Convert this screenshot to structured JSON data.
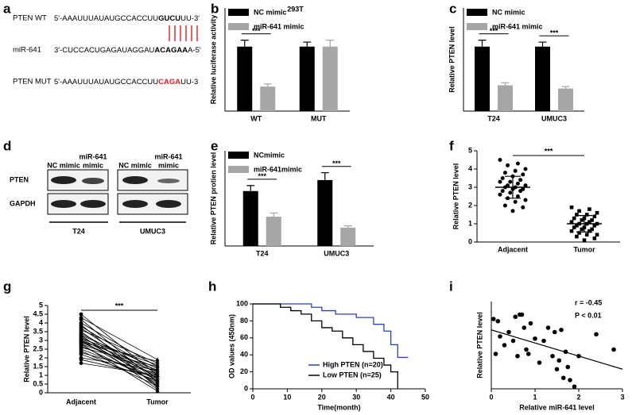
{
  "panel_labels": [
    "a",
    "b",
    "c",
    "d",
    "e",
    "f",
    "g",
    "h",
    "i"
  ],
  "sequences": [
    {
      "name": "PTEN WT",
      "parts": [
        {
          "text": "5'-AAAUUUAUAUGCCACCUU"
        },
        {
          "text": "GUCU",
          "bold": true
        },
        {
          "text": "UU-3'"
        }
      ]
    },
    {
      "name": "miR-641",
      "parts": [
        {
          "text": "3'-CUCCACUGAGAUAGGAU"
        },
        {
          "text": "ACAGAA",
          "bold": true
        },
        {
          "text": "A-5'"
        }
      ]
    },
    {
      "name": "PTEN MUT",
      "parts": [
        {
          "text": "5'-AAAUUUAUAUGCCACCUU"
        },
        {
          "text": "CAGA",
          "bold": true,
          "color": "#e02020"
        },
        {
          "text": "UU-3"
        }
      ]
    }
  ],
  "blot": {
    "lane_labels": [
      [
        "NC mimic"
      ],
      [
        "miR-641",
        "mimic"
      ],
      [
        "NC mimic"
      ],
      [
        "miR-641",
        "mimic"
      ]
    ],
    "rows": [
      "PTEN",
      "GAPDH"
    ],
    "groups": [
      "T24",
      "UMUC3"
    ]
  },
  "chart_data": [
    {
      "type": "bar",
      "title": "293T",
      "ylabel": "Relative luciferase activity",
      "categories": [
        "WT",
        "MUT"
      ],
      "series": [
        {
          "name": "NC mimic",
          "color": "#000000",
          "values": [
            1.0,
            1.0
          ],
          "errors": [
            0.1,
            0.07
          ]
        },
        {
          "name": "miR-641 mimic",
          "color": "#a6a6a6",
          "values": [
            0.38,
            1.0
          ],
          "errors": [
            0.04,
            0.1
          ]
        }
      ],
      "ylim": [
        0,
        1.6
      ],
      "significance": [
        "***",
        null
      ]
    },
    {
      "type": "bar",
      "ylabel": "Relative PTEN level",
      "categories": [
        "T24",
        "UMUC3"
      ],
      "series": [
        {
          "name": "NC mimic",
          "color": "#000000",
          "values": [
            1.0,
            1.0
          ],
          "errors": [
            0.1,
            0.07
          ]
        },
        {
          "name": "miR-641 mimic",
          "color": "#a6a6a6",
          "values": [
            0.4,
            0.35
          ],
          "errors": [
            0.04,
            0.03
          ]
        }
      ],
      "ylim": [
        0,
        1.6
      ],
      "significance": [
        "***",
        "***"
      ]
    },
    {
      "type": "bar",
      "ylabel": "Relative PTEN protien level",
      "categories": [
        "T24",
        "UMUC3"
      ],
      "series": [
        {
          "name": "NCmimic",
          "color": "#000000",
          "values": [
            1.5,
            1.8
          ],
          "errors": [
            0.15,
            0.2
          ]
        },
        {
          "name": "miR-641mimic",
          "color": "#a6a6a6",
          "values": [
            0.8,
            0.5
          ],
          "errors": [
            0.1,
            0.05
          ]
        }
      ],
      "ylim": [
        0,
        2.6
      ],
      "significance": [
        "***",
        "***"
      ]
    },
    {
      "type": "strip",
      "ylabel": "Relative PTEN level",
      "ylim": [
        0,
        5
      ],
      "yticks": [
        0,
        1,
        2,
        3,
        4,
        5
      ],
      "significance": "***",
      "groups": [
        {
          "name": "Adjacent",
          "marker": "circle",
          "mean": 3.0,
          "sd": 0.6,
          "values": [
            4.5,
            4.3,
            4.2,
            4.0,
            3.9,
            3.8,
            3.7,
            3.6,
            3.5,
            3.4,
            3.3,
            3.3,
            3.2,
            3.1,
            3.1,
            3.0,
            3.0,
            2.9,
            2.9,
            2.8,
            2.8,
            2.7,
            2.6,
            2.5,
            2.4,
            2.3,
            2.2,
            2.0,
            1.9,
            1.7
          ]
        },
        {
          "name": "Tumor",
          "marker": "square",
          "mean": 1.0,
          "sd": 0.45,
          "values": [
            1.9,
            1.8,
            1.7,
            1.6,
            1.5,
            1.5,
            1.4,
            1.3,
            1.3,
            1.2,
            1.2,
            1.1,
            1.1,
            1.0,
            1.0,
            1.0,
            0.9,
            0.9,
            0.8,
            0.8,
            0.7,
            0.7,
            0.6,
            0.6,
            0.5,
            0.4,
            0.4,
            0.3,
            0.2,
            0.1
          ]
        }
      ]
    },
    {
      "type": "paired",
      "ylabel": "Relative PTEN level",
      "categories": [
        "Adjacent",
        "Tumor"
      ],
      "significance": "***",
      "ylim": [
        0,
        5
      ],
      "yticks": [
        0,
        0.5,
        1,
        1.5,
        2,
        2.5,
        3,
        3.5,
        4,
        4.5,
        5
      ],
      "values": [
        [
          4.5,
          1.0
        ],
        [
          4.3,
          1.9
        ],
        [
          4.2,
          0.6
        ],
        [
          4.0,
          1.5
        ],
        [
          3.9,
          0.3
        ],
        [
          3.8,
          1.2
        ],
        [
          3.7,
          0.8
        ],
        [
          3.6,
          1.7
        ],
        [
          3.5,
          0.4
        ],
        [
          3.4,
          1.1
        ],
        [
          3.3,
          1.4
        ],
        [
          3.3,
          0.2
        ],
        [
          3.2,
          0.9
        ],
        [
          3.1,
          1.6
        ],
        [
          3.1,
          0.7
        ],
        [
          3.0,
          1.3
        ],
        [
          3.0,
          0.5
        ],
        [
          2.9,
          1.0
        ],
        [
          2.9,
          1.8
        ],
        [
          2.8,
          0.1
        ],
        [
          2.8,
          1.2
        ],
        [
          2.7,
          0.6
        ],
        [
          2.6,
          1.5
        ],
        [
          2.5,
          0.8
        ],
        [
          2.4,
          0.4
        ],
        [
          2.3,
          1.1
        ],
        [
          2.2,
          0.7
        ],
        [
          2.0,
          1.3
        ],
        [
          1.9,
          0.9
        ],
        [
          1.7,
          1.0
        ]
      ]
    },
    {
      "type": "survival",
      "xlabel": "Time(month)",
      "ylabel": "OD values (450nm)",
      "xlim": [
        0,
        50
      ],
      "xticks": [
        0,
        10,
        20,
        30,
        40,
        50
      ],
      "ylim": [
        0,
        100
      ],
      "yticks": [
        0,
        20,
        40,
        60,
        80,
        100
      ],
      "series": [
        {
          "name": "High PTEN (n=20)",
          "color": "#2b3fc4",
          "x": [
            0,
            17,
            20,
            24,
            30,
            35,
            38,
            40,
            42,
            45
          ],
          "values": [
            100,
            96,
            92,
            88,
            84,
            76,
            68,
            52,
            37,
            37
          ]
        },
        {
          "name": "Low PTEN (n=25)",
          "color": "#000000",
          "x": [
            0,
            8,
            11,
            14,
            17,
            20,
            23,
            26,
            29,
            32,
            35,
            38,
            40,
            42
          ],
          "values": [
            100,
            96,
            92,
            88,
            80,
            72,
            68,
            60,
            52,
            44,
            36,
            28,
            20,
            0
          ]
        }
      ]
    },
    {
      "type": "scatter",
      "xlabel": "Relative miR-641 level",
      "ylabel": "Relative PTEN level",
      "xlim": [
        0,
        3
      ],
      "xticks": [
        0,
        1,
        2,
        3
      ],
      "ylim": [
        0,
        4
      ],
      "annotations": [
        "r = -0.45",
        "P < 0.01"
      ],
      "x": [
        0.05,
        0.1,
        0.15,
        0.2,
        0.3,
        0.4,
        0.5,
        0.55,
        0.6,
        0.65,
        0.7,
        0.75,
        0.8,
        0.85,
        0.9,
        1.0,
        1.1,
        1.2,
        1.3,
        1.4,
        1.45,
        1.5,
        1.55,
        1.6,
        1.65,
        1.7,
        1.75,
        1.8,
        1.9,
        2.0,
        2.4,
        2.8
      ],
      "values": [
        3.2,
        1.6,
        3.1,
        2.4,
        2.0,
        2.6,
        2.2,
        3.3,
        1.5,
        3.4,
        3.4,
        2.8,
        1.8,
        1.6,
        3.0,
        2.3,
        1.2,
        2.2,
        2.8,
        1.5,
        2.6,
        0.9,
        1.3,
        2.7,
        0.5,
        1.7,
        1.0,
        0.4,
        0.1,
        1.5,
        2.5,
        1.8
      ],
      "trend_line": {
        "x": [
          0,
          3
        ],
        "values": [
          2.7,
          0.9
        ]
      }
    }
  ]
}
